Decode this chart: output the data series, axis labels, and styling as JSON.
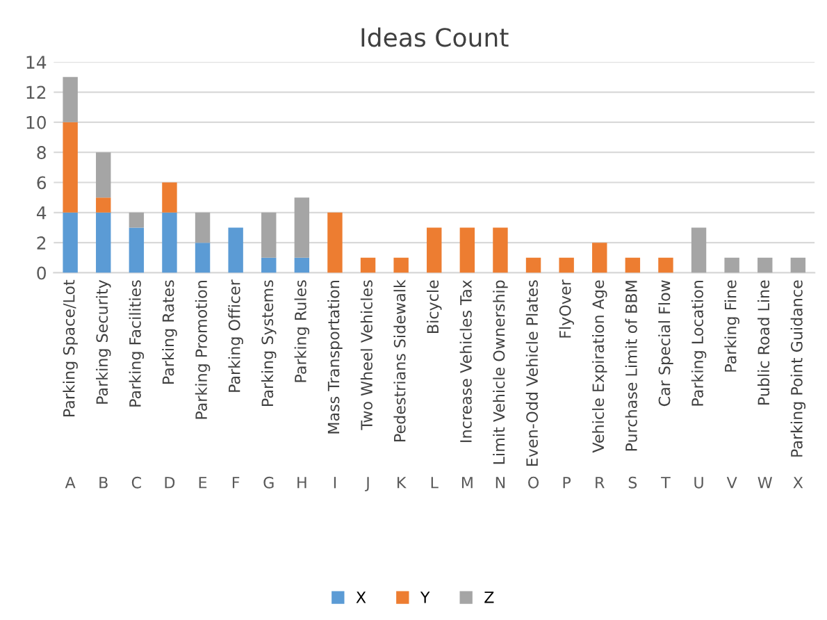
{
  "chart_data": {
    "type": "bar",
    "title": "Ideas Count",
    "stacked": true,
    "categories": [
      "Parking Space/Lot",
      "Parking Security",
      "Parking Facilities",
      "Parking Rates",
      "Parking Promotion",
      "Parking Officer",
      "Parking Systems",
      "Parking Rules",
      "Mass Transportation",
      "Two Wheel Vehicles",
      "Pedestrians Sidewalk",
      "Bicycle",
      "Increase Vehicles Tax",
      "Limit Vehicle Ownership",
      "Even-Odd Vehicle Plates",
      "FlyOver",
      "Vehicle Expiration Age",
      "Purchase Limit of BBM",
      "Car Special Flow",
      "Parking Location",
      "Parking Fine",
      "Public Road Line",
      "Parking Point Guidance"
    ],
    "annotations": [
      "A",
      "B",
      "C",
      "D",
      "E",
      "F",
      "G",
      "H",
      "I",
      "J",
      "K",
      "L",
      "M",
      "N",
      "O",
      "P",
      "R",
      "S",
      "T",
      "U",
      "V",
      "W",
      "X"
    ],
    "series": [
      {
        "name": "X",
        "color": "#5b9bd5",
        "values": [
          4,
          4,
          3,
          4,
          2,
          3,
          1,
          1,
          null,
          null,
          null,
          null,
          null,
          null,
          null,
          null,
          null,
          null,
          null,
          null,
          null,
          null,
          null
        ]
      },
      {
        "name": "Y",
        "color": "#ed7d31",
        "values": [
          6,
          1,
          null,
          2,
          null,
          null,
          null,
          null,
          4,
          1,
          1,
          3,
          3,
          3,
          1,
          1,
          2,
          1,
          1,
          null,
          null,
          null,
          null
        ]
      },
      {
        "name": "Z",
        "color": "#a5a5a5",
        "values": [
          3,
          3,
          1,
          null,
          2,
          null,
          3,
          4,
          null,
          null,
          null,
          null,
          null,
          null,
          null,
          null,
          null,
          null,
          null,
          3,
          1,
          1,
          1
        ]
      }
    ],
    "ylim": [
      0,
      14
    ],
    "yticks": [
      0,
      2,
      4,
      6,
      8,
      10,
      12,
      14
    ],
    "grid": "y",
    "legend": "bottom"
  }
}
